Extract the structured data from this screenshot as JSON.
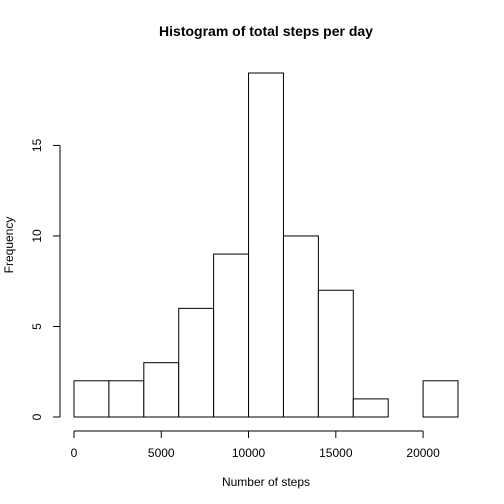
{
  "chart_data": {
    "type": "bar",
    "title": "Histogram of total steps per day",
    "xlabel": "Number of steps",
    "ylabel": "Frequency",
    "bins": [
      {
        "from": 0,
        "to": 2000,
        "count": 2
      },
      {
        "from": 2000,
        "to": 4000,
        "count": 2
      },
      {
        "from": 4000,
        "to": 6000,
        "count": 3
      },
      {
        "from": 6000,
        "to": 8000,
        "count": 6
      },
      {
        "from": 8000,
        "to": 10000,
        "count": 9
      },
      {
        "from": 10000,
        "to": 12000,
        "count": 19
      },
      {
        "from": 12000,
        "to": 14000,
        "count": 10
      },
      {
        "from": 14000,
        "to": 16000,
        "count": 7
      },
      {
        "from": 16000,
        "to": 18000,
        "count": 1
      },
      {
        "from": 18000,
        "to": 20000,
        "count": 0
      },
      {
        "from": 20000,
        "to": 22000,
        "count": 2
      }
    ],
    "xlim": [
      0,
      22000
    ],
    "ylim": [
      0,
      19
    ],
    "x_ticks": [
      "0",
      "5000",
      "10000",
      "15000",
      "20000"
    ],
    "y_ticks": [
      "0",
      "5",
      "10",
      "15"
    ],
    "grid": false,
    "colors": {
      "bar_fill": "#ffffff",
      "bar_stroke": "#000000"
    }
  }
}
